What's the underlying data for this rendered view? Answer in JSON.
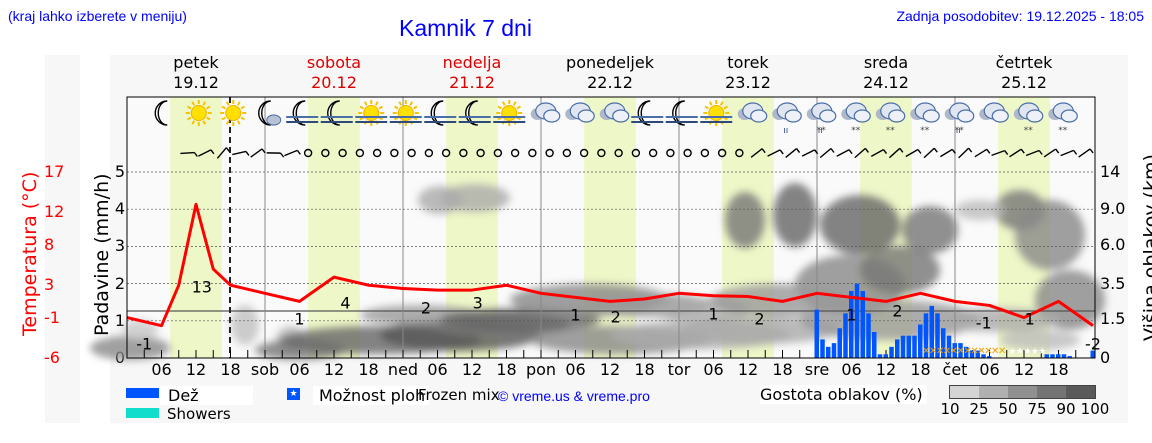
{
  "header": {
    "left_note": "(kraj lahko izberete v meniju)",
    "title": "Kamnik 7 dni",
    "updated": "Zadnja posodobitev: 19.12.2025 - 18:05"
  },
  "days": [
    {
      "name": "petek",
      "date": "19.12",
      "weekend": false
    },
    {
      "name": "sobota",
      "date": "20.12",
      "weekend": true
    },
    {
      "name": "nedelja",
      "date": "21.12",
      "weekend": true
    },
    {
      "name": "ponedeljek",
      "date": "22.12",
      "weekend": false
    },
    {
      "name": "torek",
      "date": "23.12",
      "weekend": false
    },
    {
      "name": "sreda",
      "date": "24.12",
      "weekend": false
    },
    {
      "name": "četrtek",
      "date": "25.12",
      "weekend": false
    }
  ],
  "axes": {
    "left_label": "Padavine (mm/h)",
    "left_ticks": [
      "0",
      "1",
      "2",
      "3",
      "4",
      "5"
    ],
    "temp_label": "Temperatura (°C)",
    "temp_ticks": [
      "-6",
      "-1",
      "3",
      "8",
      "12",
      "17"
    ],
    "right_label": "Višina oblakov (km)",
    "right_ticks": [
      "1.5",
      "3.5",
      "6.0",
      "9.0",
      "14"
    ],
    "x_ticks": [
      "06",
      "12",
      "18",
      "sob",
      "06",
      "12",
      "18",
      "ned",
      "06",
      "12",
      "18",
      "pon",
      "06",
      "12",
      "18",
      "tor",
      "06",
      "12",
      "18",
      "sre",
      "06",
      "12",
      "18",
      "čet",
      "06",
      "12",
      "18"
    ]
  },
  "legend": {
    "rain": "Dež",
    "showers": "Showers",
    "possible": "Možnost ploh",
    "frozen": "Frozen mix",
    "credit": "© vreme.us & vreme.pro",
    "cloud_density": "Gostota oblakov (%)",
    "cloud_scale": [
      "10",
      "25",
      "50",
      "75",
      "90",
      "100"
    ]
  },
  "colors": {
    "rain": "#0055ff",
    "showers": "#11ddcc",
    "temperature": "#ff0000",
    "daylight": "#eef7c8",
    "title": "#0000ff"
  },
  "weather_icons": [
    "moon",
    "sun",
    "sun",
    "moon-cloud",
    "moon-fog",
    "moon-fog",
    "sun-fog",
    "sun-fog",
    "moon-fog",
    "moon-fog",
    "sun-fog",
    "cloud",
    "cloud",
    "cloud",
    "moon-fog",
    "moon-fog",
    "sun-fog",
    "cloud",
    "cloud-rain",
    "cloud-sleet",
    "cloud-snow",
    "cloud-snow",
    "cloud-snow",
    "cloud-sleet",
    "cloud",
    "cloud-snow",
    "cloud-snow"
  ],
  "chart_data": {
    "type": "line",
    "title": "Kamnik 7 dni",
    "xlabel": "",
    "ylabel": "Padavine (mm/h)",
    "ylim": [
      0,
      5
    ],
    "series": [
      {
        "name": "Temperatura (°C)",
        "x_hours": [
          0,
          6,
          9,
          12,
          15,
          18,
          24,
          30,
          36,
          42,
          48,
          54,
          60,
          66,
          72,
          78,
          84,
          90,
          96,
          102,
          108,
          114,
          120,
          126,
          132,
          138,
          144,
          150,
          156,
          162,
          168
        ],
        "values": [
          -1,
          -2,
          3,
          13,
          5,
          3,
          2,
          1,
          4,
          3,
          2.6,
          2.4,
          2.4,
          3,
          2,
          1.5,
          1,
          1.3,
          2,
          1.7,
          1.6,
          1,
          2,
          1.5,
          1,
          2,
          1,
          0.5,
          -1,
          1,
          -2
        ],
        "labels": [
          {
            "h": 3,
            "v": "-1"
          },
          {
            "h": 13,
            "v": "13"
          },
          {
            "h": 30,
            "v": "1"
          },
          {
            "h": 38,
            "v": "4"
          },
          {
            "h": 52,
            "v": "2"
          },
          {
            "h": 61,
            "v": "3"
          },
          {
            "h": 78,
            "v": "1"
          },
          {
            "h": 85,
            "v": "2"
          },
          {
            "h": 102,
            "v": "1"
          },
          {
            "h": 110,
            "v": "2"
          },
          {
            "h": 126,
            "v": "1"
          },
          {
            "h": 134,
            "v": "2"
          },
          {
            "h": 149,
            "v": "-1"
          },
          {
            "h": 157,
            "v": "1"
          },
          {
            "h": 168,
            "v": "-2"
          }
        ]
      },
      {
        "name": "Dež (mm/h)",
        "x_hours": [
          120,
          121,
          122,
          123,
          124,
          125,
          126,
          127,
          128,
          129,
          130,
          131,
          132,
          133,
          134,
          135,
          136,
          137,
          138,
          139,
          140,
          141,
          142,
          143,
          144,
          145,
          146,
          147,
          148,
          149,
          150,
          160,
          161,
          162,
          163,
          164,
          168
        ],
        "values": [
          1.3,
          0.5,
          0.3,
          0.4,
          0.8,
          1.2,
          1.8,
          2.0,
          1.8,
          1.2,
          0.7,
          0.1,
          0.1,
          0.3,
          0.5,
          0.6,
          0.6,
          0.6,
          0.9,
          1.2,
          1.4,
          1.2,
          0.8,
          0.6,
          0.4,
          0.4,
          0.3,
          0.2,
          0.2,
          0.1,
          0.05,
          0.1,
          0.1,
          0.1,
          0.1,
          0.05,
          0.2
        ]
      }
    ],
    "secondary_axes": {
      "temperature": {
        "ticks": [
          -6,
          -1,
          3,
          8,
          12,
          17
        ]
      },
      "cloud_height_km": {
        "ticks": [
          0,
          1.5,
          3.5,
          6.0,
          9.0,
          14
        ]
      }
    },
    "grid": true,
    "legend_position": "bottom"
  }
}
